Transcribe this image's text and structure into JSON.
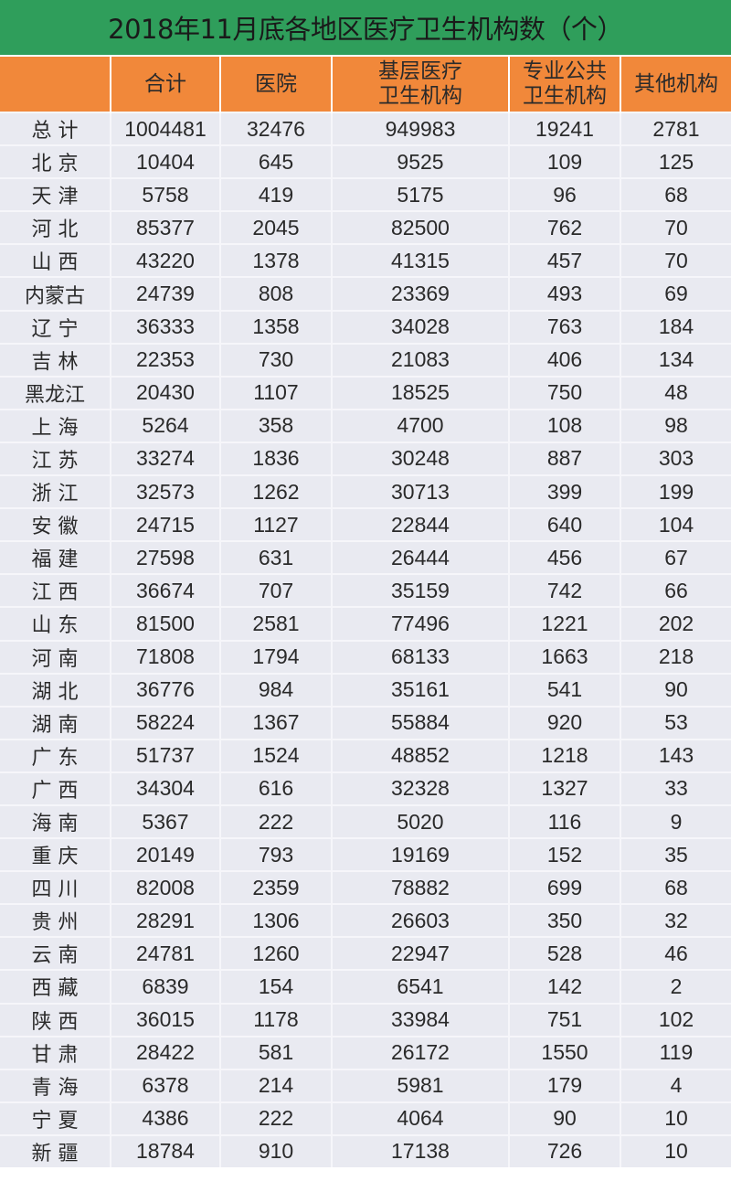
{
  "title": "2018年11月底各地区医疗卫生机构数（个）",
  "colors": {
    "title_bg": "#2f9e5b",
    "header_bg": "#f1883a",
    "row_bg": "#e9eaf1"
  },
  "headers": [
    "",
    "合计",
    "医院",
    "基层医疗\n卫生机构",
    "专业公共\n卫生机构",
    "其他机构"
  ],
  "rows": [
    [
      "总 计",
      "1004481",
      "32476",
      "949983",
      "19241",
      "2781"
    ],
    [
      "北 京",
      "10404",
      "645",
      "9525",
      "109",
      "125"
    ],
    [
      "天 津",
      "5758",
      "419",
      "5175",
      "96",
      "68"
    ],
    [
      "河 北",
      "85377",
      "2045",
      "82500",
      "762",
      "70"
    ],
    [
      "山 西",
      "43220",
      "1378",
      "41315",
      "457",
      "70"
    ],
    [
      "内蒙古",
      "24739",
      "808",
      "23369",
      "493",
      "69"
    ],
    [
      "辽 宁",
      "36333",
      "1358",
      "34028",
      "763",
      "184"
    ],
    [
      "吉 林",
      "22353",
      "730",
      "21083",
      "406",
      "134"
    ],
    [
      "黑龙江",
      "20430",
      "1107",
      "18525",
      "750",
      "48"
    ],
    [
      "上 海",
      "5264",
      "358",
      "4700",
      "108",
      "98"
    ],
    [
      "江 苏",
      "33274",
      "1836",
      "30248",
      "887",
      "303"
    ],
    [
      "浙 江",
      "32573",
      "1262",
      "30713",
      "399",
      "199"
    ],
    [
      "安 徽",
      "24715",
      "1127",
      "22844",
      "640",
      "104"
    ],
    [
      "福 建",
      "27598",
      "631",
      "26444",
      "456",
      "67"
    ],
    [
      "江 西",
      "36674",
      "707",
      "35159",
      "742",
      "66"
    ],
    [
      "山 东",
      "81500",
      "2581",
      "77496",
      "1221",
      "202"
    ],
    [
      "河 南",
      "71808",
      "1794",
      "68133",
      "1663",
      "218"
    ],
    [
      "湖 北",
      "36776",
      "984",
      "35161",
      "541",
      "90"
    ],
    [
      "湖 南",
      "58224",
      "1367",
      "55884",
      "920",
      "53"
    ],
    [
      "广 东",
      "51737",
      "1524",
      "48852",
      "1218",
      "143"
    ],
    [
      "广 西",
      "34304",
      "616",
      "32328",
      "1327",
      "33"
    ],
    [
      "海 南",
      "5367",
      "222",
      "5020",
      "116",
      "9"
    ],
    [
      "重 庆",
      "20149",
      "793",
      "19169",
      "152",
      "35"
    ],
    [
      "四 川",
      "82008",
      "2359",
      "78882",
      "699",
      "68"
    ],
    [
      "贵 州",
      "28291",
      "1306",
      "26603",
      "350",
      "32"
    ],
    [
      "云 南",
      "24781",
      "1260",
      "22947",
      "528",
      "46"
    ],
    [
      "西 藏",
      "6839",
      "154",
      "6541",
      "142",
      "2"
    ],
    [
      "陕 西",
      "36015",
      "1178",
      "33984",
      "751",
      "102"
    ],
    [
      "甘 肃",
      "28422",
      "581",
      "26172",
      "1550",
      "119"
    ],
    [
      "青 海",
      "6378",
      "214",
      "5981",
      "179",
      "4"
    ],
    [
      "宁 夏",
      "4386",
      "222",
      "4064",
      "90",
      "10"
    ],
    [
      "新 疆",
      "18784",
      "910",
      "17138",
      "726",
      "10"
    ]
  ]
}
